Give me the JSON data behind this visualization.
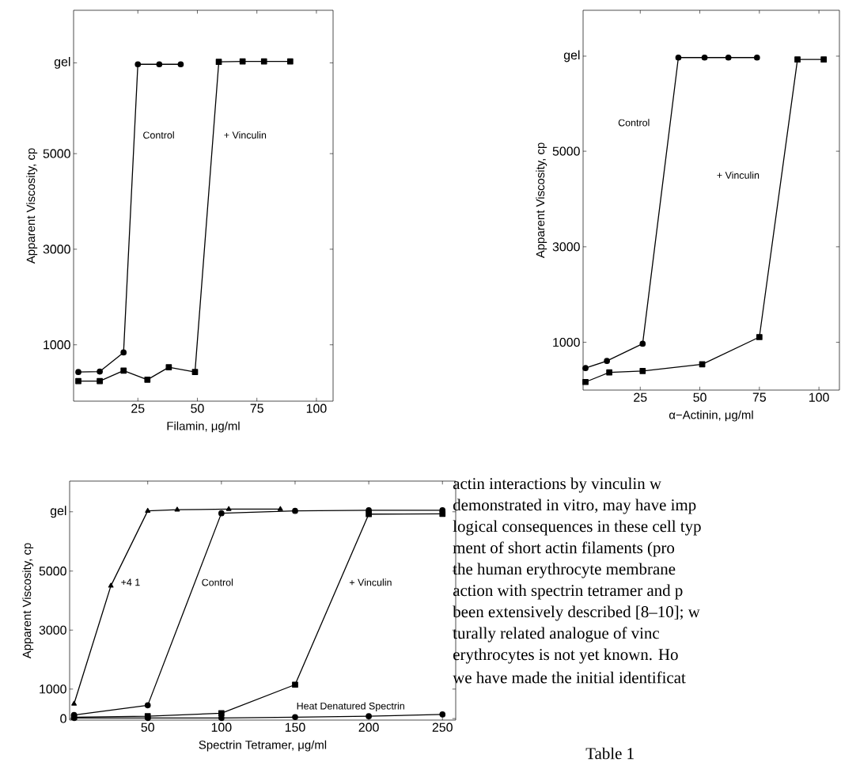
{
  "chart_data": [
    {
      "type": "line",
      "xlabel": "Filamin, μg/ml",
      "ylabel": "Apparent Viscosity, cp",
      "xlim": [
        -2,
        107
      ],
      "ylim": [
        -180,
        8000
      ],
      "xticks": [
        25,
        50,
        75,
        100
      ],
      "yticks": [
        1000,
        3000,
        5000,
        {
          "value": 6900,
          "label": "gel"
        }
      ],
      "series": [
        {
          "name": "Control",
          "color": "#000000",
          "marker": "circle",
          "x": [
            0,
            9,
            19,
            25,
            34,
            43
          ],
          "values": [
            430,
            440,
            840,
            6870,
            6870,
            6870
          ]
        },
        {
          "name": "+ Vinculin",
          "color": "#000000",
          "marker": "square",
          "x": [
            0,
            9,
            19,
            29,
            38,
            49,
            59,
            69,
            78,
            89
          ],
          "values": [
            240,
            240,
            460,
            270,
            530,
            430,
            6920,
            6930,
            6930,
            6930
          ]
        }
      ]
    },
    {
      "type": "line",
      "xlabel": "α−Actinin, μg/ml",
      "ylabel": "Apparent Viscosity, cp",
      "xlim": [
        1,
        108.6
      ],
      "ylim": [
        0,
        7950
      ],
      "xticks": [
        25,
        50,
        75,
        100
      ],
      "yticks": [
        1000,
        3000,
        5000,
        {
          "value": 6990,
          "label": "gel"
        }
      ],
      "series": [
        {
          "name": "Control",
          "color": "#000000",
          "marker": "circle",
          "x": [
            2,
            11,
            26,
            41,
            52,
            62,
            74
          ],
          "values": [
            460,
            610,
            970,
            6960,
            6960,
            6960,
            6960
          ]
        },
        {
          "name": "+ Vinculin",
          "color": "#000000",
          "marker": "square",
          "x": [
            2,
            12,
            26,
            51,
            75,
            91,
            102
          ],
          "values": [
            170,
            370,
            400,
            540,
            1110,
            6920,
            6920
          ]
        }
      ]
    },
    {
      "type": "line",
      "xlabel": "Spectrin Tetramer, μg/ml",
      "ylabel": "Apparent Viscosity, cp",
      "xlim": [
        -3,
        259
      ],
      "ylim": [
        -50,
        8050
      ],
      "xticks": [
        50,
        100,
        150,
        200,
        250
      ],
      "yticks": [
        0,
        1000,
        3000,
        5000,
        {
          "value": 7010,
          "label": "gel"
        }
      ],
      "series": [
        {
          "name": "+4 1",
          "color": "#000000",
          "marker": "triangle",
          "x": [
            0,
            25,
            50,
            70,
            105,
            140
          ],
          "values": [
            500,
            4500,
            7040,
            7080,
            7100,
            7100
          ]
        },
        {
          "name": "Control",
          "color": "#000000",
          "marker": "circle",
          "x": [
            0,
            50,
            100,
            150,
            200,
            250
          ],
          "values": [
            120,
            450,
            6960,
            7040,
            7060,
            7060
          ]
        },
        {
          "name": "+ Vinculin",
          "color": "#000000",
          "marker": "square",
          "x": [
            0,
            50,
            100,
            150,
            200,
            250
          ],
          "values": [
            50,
            80,
            180,
            1150,
            6930,
            6940
          ]
        },
        {
          "name": "Heat Denatured Spectrin",
          "color": "#000000",
          "marker": "circle",
          "x": [
            0,
            50,
            100,
            150,
            200,
            250
          ],
          "values": [
            20,
            20,
            20,
            50,
            80,
            140
          ]
        }
      ]
    },
    {
      "type": "other",
      "annotations": [
        "actin interactions by vinculin w",
        "demonstrated in vitro, may have imp",
        "logical consequences in these cell typ",
        "ment of short actin filaments (pro",
        "the human erythrocyte membrane",
        "action with spectrin tetramer and p",
        "been extensively described [8–10]; w",
        "turally related analogue of vinc",
        "erythrocytes is not yet known. Ho",
        "we have made the initial identificat",
        "Table 1"
      ]
    }
  ]
}
